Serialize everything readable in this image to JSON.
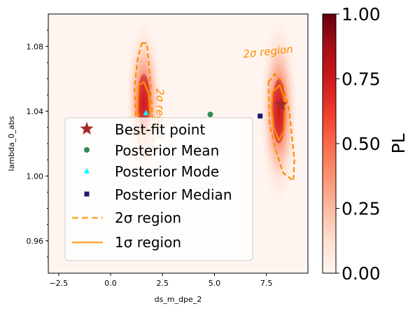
{
  "chart_data": {
    "type": "scatter",
    "subtype": "2d-profile-likelihood-heatmap",
    "xlabel": "ds_m_dpe_2",
    "ylabel": "lambda_0_abs",
    "xlim": [
      -3.0,
      9.5
    ],
    "ylim": [
      0.94,
      1.1
    ],
    "xticks": [
      -2.5,
      0.0,
      2.5,
      5.0,
      7.5
    ],
    "xtick_labels": [
      "−2.5",
      "0.0",
      "2.5",
      "5.0",
      "7.5"
    ],
    "yticks": [
      0.96,
      1.0,
      1.04,
      1.08
    ],
    "ytick_labels": [
      "0.96",
      "1.00",
      "1.04",
      "1.08"
    ],
    "colorbar": {
      "label": "PL",
      "range": [
        0.0,
        1.0
      ],
      "ticks": [
        0.0,
        0.25,
        0.5,
        0.75,
        1.0
      ],
      "tick_labels": [
        "0.00",
        "0.25",
        "0.50",
        "0.75",
        "1.00"
      ],
      "colormap": "Reds"
    },
    "modes": [
      {
        "x": 1.6,
        "y": 1.045,
        "sx": 0.32,
        "sy": 0.018
      },
      {
        "x": 8.1,
        "y": 1.04,
        "sx": 0.33,
        "sy": 0.02
      }
    ],
    "points": {
      "best_fit": {
        "x": 8.2,
        "y": 1.044,
        "color": "#a52a2a"
      },
      "mean": {
        "x": 4.8,
        "y": 1.038,
        "color": "#2e8b57"
      },
      "mode": {
        "x": 1.7,
        "y": 1.039,
        "color": "#00ffff"
      },
      "median": {
        "x": 7.2,
        "y": 1.037,
        "color": "#191970"
      }
    },
    "contour_2sigma": [
      [
        [
          1.5,
          1.082
        ],
        [
          1.75,
          1.082
        ],
        [
          1.9,
          1.06
        ],
        [
          2.0,
          1.04
        ],
        [
          2.05,
          1.02
        ],
        [
          1.95,
          1.012
        ],
        [
          1.5,
          1.012
        ],
        [
          1.25,
          1.028
        ],
        [
          1.15,
          1.055
        ],
        [
          1.3,
          1.072
        ],
        [
          1.5,
          1.082
        ]
      ],
      [
        [
          7.6,
          1.058
        ],
        [
          7.9,
          1.063
        ],
        [
          8.3,
          1.058
        ],
        [
          8.6,
          1.04
        ],
        [
          8.85,
          1.01
        ],
        [
          8.8,
          0.997
        ],
        [
          8.3,
          1.002
        ],
        [
          7.95,
          1.016
        ],
        [
          7.65,
          1.032
        ],
        [
          7.6,
          1.058
        ]
      ]
    ],
    "contour_1sigma": [
      [
        [
          1.35,
          1.056
        ],
        [
          1.6,
          1.058
        ],
        [
          1.85,
          1.05
        ],
        [
          1.9,
          1.038
        ],
        [
          1.75,
          1.026
        ],
        [
          1.45,
          1.028
        ],
        [
          1.3,
          1.04
        ],
        [
          1.35,
          1.056
        ]
      ],
      [
        [
          7.8,
          1.052
        ],
        [
          8.15,
          1.056
        ],
        [
          8.4,
          1.046
        ],
        [
          8.35,
          1.028
        ],
        [
          8.1,
          1.022
        ],
        [
          7.85,
          1.03
        ],
        [
          7.75,
          1.042
        ],
        [
          7.8,
          1.052
        ]
      ]
    ],
    "annotations": [
      {
        "text": "2σ region",
        "x": 6.4,
        "y": 1.073,
        "angle": -6
      },
      {
        "text": "2σ region",
        "x": 2.2,
        "y": 1.054,
        "angle": 90
      }
    ],
    "legend": {
      "placement": "center-left",
      "entries": [
        {
          "label": "Best-fit point",
          "marker": "star",
          "color": "#a52a2a"
        },
        {
          "label": "Posterior Mean",
          "marker": "circle",
          "color": "#2e8b57"
        },
        {
          "label": "Posterior Mode",
          "marker": "triangle",
          "color": "#00ffff"
        },
        {
          "label": "Posterior Median",
          "marker": "square",
          "color": "#191970"
        },
        {
          "label": "2σ region",
          "marker": "dashed-line",
          "color": "#ffa733"
        },
        {
          "label": "1σ region",
          "marker": "solid-line",
          "color": "#ffa733"
        }
      ]
    },
    "colors": {
      "background": "#fff5f0",
      "contour": "#ff8c00",
      "legend_line": "#ffa733"
    }
  }
}
